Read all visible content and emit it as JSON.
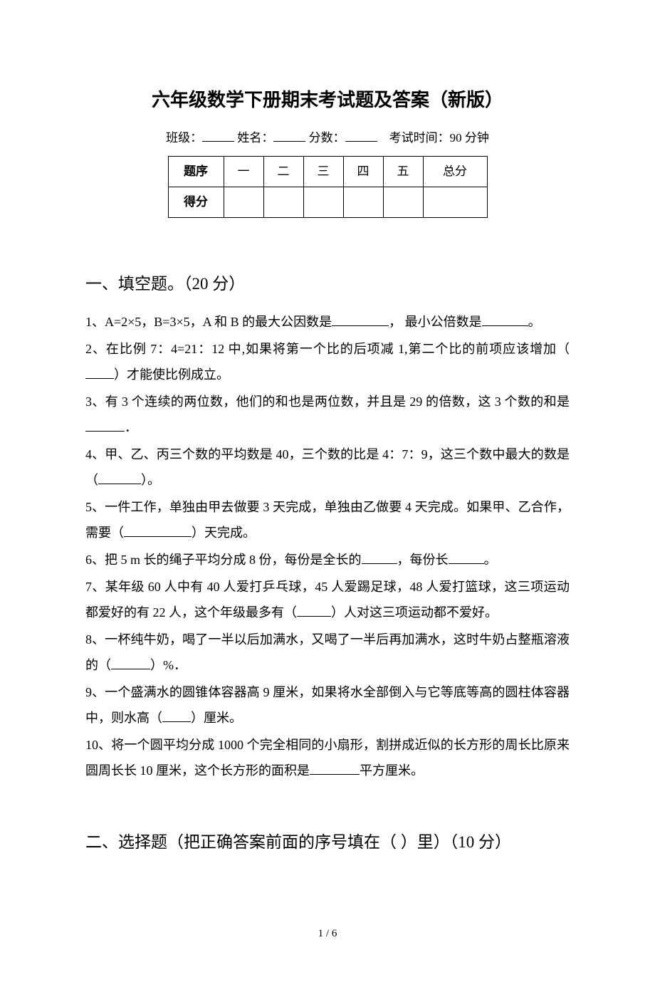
{
  "title": "六年级数学下册期末考试题及答案（新版）",
  "header": {
    "class_label": "班级：",
    "name_label": "姓名：",
    "score_label": "分数：",
    "time_label": "考试时间：90 分钟"
  },
  "score_table": {
    "row1_label": "题序",
    "cols": [
      "一",
      "二",
      "三",
      "四",
      "五",
      "总分"
    ],
    "row2_label": "得分"
  },
  "section1": {
    "heading": "一、填空题。（20 分）",
    "q1_a": "1、A=2×5，B=3×5，A 和 B 的最大公因数是",
    "q1_b": "， 最小公倍数是",
    "q1_c": "。",
    "q2_a": "2、在比例 7：4=21：12 中,如果将第一个比的后项减 1,第二个比的前项应该增加（",
    "q2_b": "）才能使比例成立。",
    "q3_a": "3、有 3 个连续的两位数，他们的和也是两位数，并且是 29 的倍数，这 3 个数的和是",
    "q3_b": "．",
    "q4_a": "4、甲、乙、丙三个数的平均数是 40，三个数的比是 4：7：9，这三个数中最大的数是（",
    "q4_b": "）。",
    "q5_a": "5、一件工作，单独由甲去做要 3 天完成，单独由乙做要 4 天完成。如果甲、乙合作，需要（",
    "q5_b": "）天完成。",
    "q6_a": "6、把 5 m 长的绳子平均分成 8 份，每份是全长的",
    "q6_b": "，每份长",
    "q6_c": "。",
    "q7_a": "7、某年级 60 人中有 40 人爱打乒乓球，45 人爱踢足球，48 人爱打篮球，这三项运动都爱好的有 22 人，这个年级最多有（",
    "q7_b": "）人对这三项运动都不爱好。",
    "q8_a": "8、一杯纯牛奶，喝了一半以后加满水，又喝了一半后再加满水，这时牛奶占整瓶溶液的（",
    "q8_b": "）%．",
    "q9_a": "9、一个盛满水的圆锥体容器高 9 厘米，如果将水全部倒入与它等底等高的圆柱体容器中，则水高（",
    "q9_b": "）厘米。",
    "q10_a": "10、将一个圆平均分成 1000 个完全相同的小扇形，割拼成近似的长方形的周长比原来圆周长长 10 厘米，这个长方形的面积是",
    "q10_b": "平方厘米。"
  },
  "section2": {
    "heading": "二、选择题（把正确答案前面的序号填在（ ）里）（10 分）"
  },
  "page_num": "1 / 6",
  "blank_widths": {
    "header_field": 45,
    "q1_gcf": 80,
    "q1_lcm": 65,
    "q2": 40,
    "q3": 55,
    "q4": 60,
    "q5": 95,
    "q6a": 50,
    "q6b": 50,
    "q7": 48,
    "q8": 55,
    "q9": 40,
    "q10": 70
  }
}
